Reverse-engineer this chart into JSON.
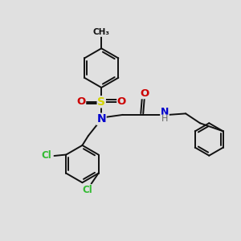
{
  "bg_color": "#e0e0e0",
  "bond_color": "#111111",
  "lw": 1.4,
  "atom_colors": {
    "S": "#d4d400",
    "N": "#0000cc",
    "O": "#cc0000",
    "Cl": "#33bb33",
    "H": "#666666"
  },
  "figsize": [
    3.0,
    3.0
  ],
  "dpi": 100
}
